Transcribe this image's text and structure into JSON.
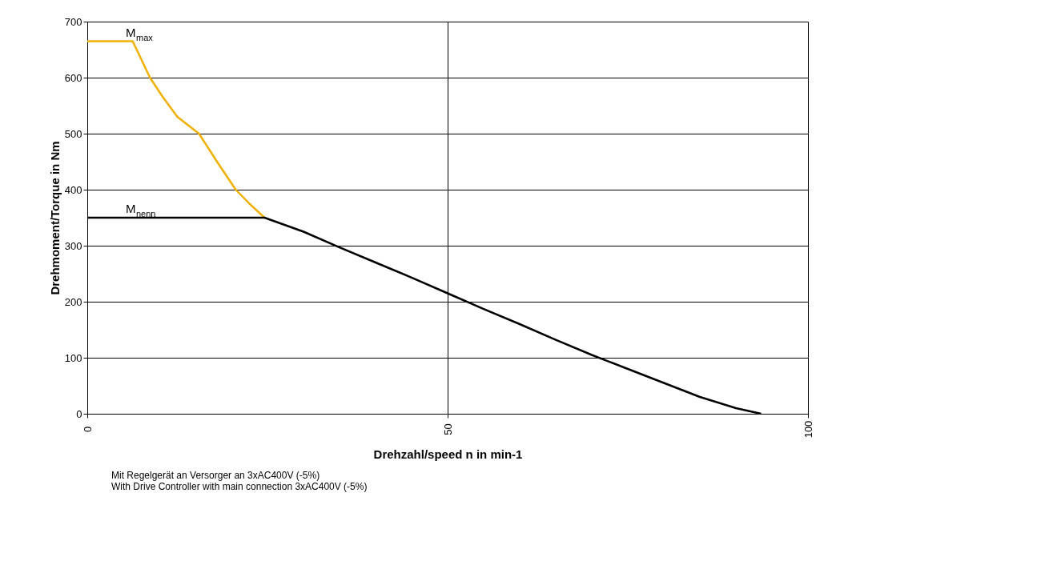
{
  "chart_data": {
    "type": "line",
    "xlabel": "Drehzahl/speed n in min-1",
    "ylabel": "Drehmoment/Torque in Nm",
    "series": [
      {
        "name": "M$_{max}$",
        "color": "#f0b000",
        "x": [
          0,
          6.3,
          8.7,
          10.5,
          12.5,
          15.5,
          18,
          20.6,
          22.5,
          24.6
        ],
        "values": [
          665,
          665,
          600,
          565,
          530,
          500,
          450,
          400,
          375,
          350
        ]
      },
      {
        "name": "M$_{nenn}$",
        "color": "#000000",
        "x": [
          0,
          24.6,
          30,
          35,
          40,
          45,
          50,
          55,
          60,
          65,
          70,
          75,
          80,
          85,
          90,
          93.5
        ],
        "values": [
          350,
          350,
          325,
          297,
          270,
          243,
          215,
          187,
          160,
          132,
          105,
          80,
          55,
          30,
          10,
          0
        ]
      }
    ],
    "xlim": [
      0,
      100
    ],
    "xticks": [
      0,
      50,
      100
    ],
    "ylim": [
      0,
      700
    ],
    "yticks": [
      0,
      100,
      200,
      300,
      400,
      500,
      600,
      700
    ],
    "grid": true,
    "annotations": [
      "Mit Regelgerät an Versorger an 3xAC400V (-5%)",
      "With Drive Controller with main connection 3xAC400V (-5%)"
    ]
  }
}
